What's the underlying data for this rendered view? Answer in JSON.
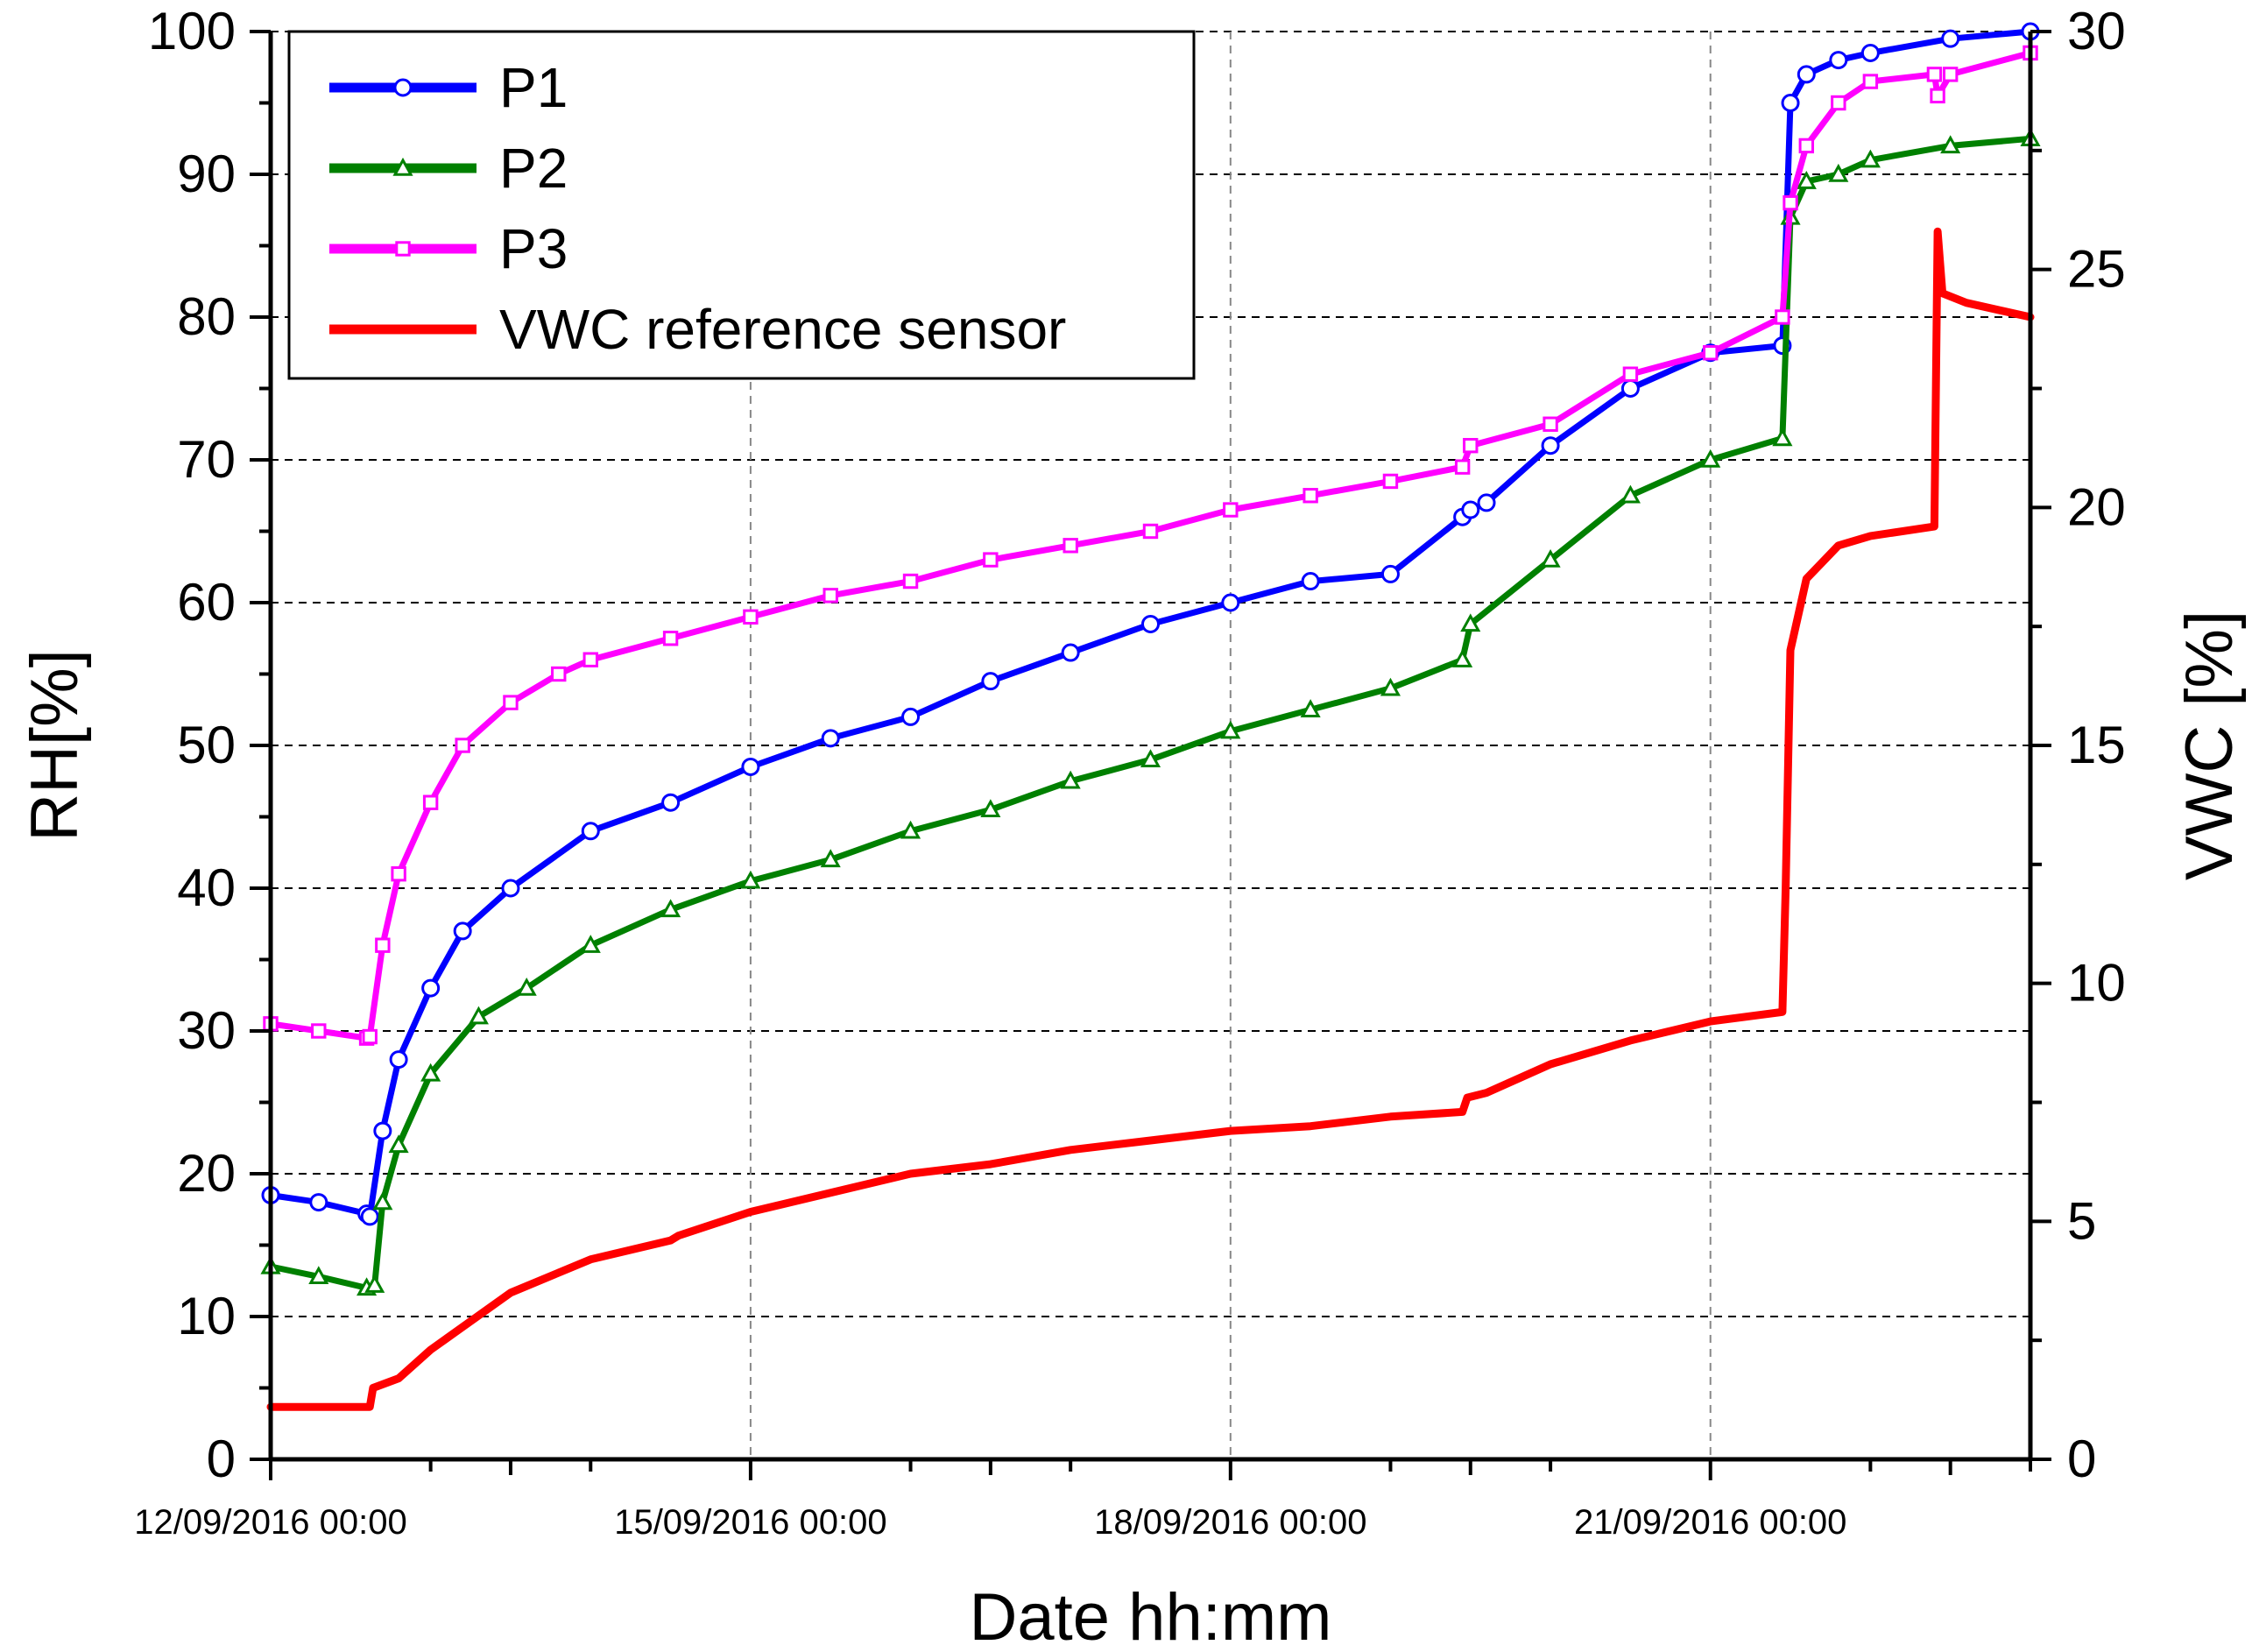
{
  "chart_data": {
    "type": "line",
    "title": "",
    "xlabel": "Date hh:mm",
    "ylabel_left": "RH[%]",
    "ylabel_right": "VWC [%]",
    "x_unit": "days since 12/09/2016 00:00",
    "xlim": [
      0,
      11
    ],
    "ylim_left": [
      0,
      100
    ],
    "ylim_right": [
      0,
      30
    ],
    "x_ticks": [
      0,
      3,
      6,
      9
    ],
    "x_tick_labels": [
      "12/09/2016 00:00",
      "15/09/2016 00:00",
      "18/09/2016 00:00",
      "21/09/2016 00:00"
    ],
    "y_ticks_left": [
      0,
      10,
      20,
      30,
      40,
      50,
      60,
      70,
      80,
      90,
      100
    ],
    "y_ticks_right": [
      0,
      5,
      10,
      15,
      20,
      25,
      30
    ],
    "grid": "dashed horizontal at left ticks, dashed vertical at date ticks",
    "legend_position": "top-left",
    "legend": [
      "P1",
      "P2",
      "P3",
      "VWC reference sensor"
    ],
    "series": [
      {
        "name": "P1",
        "axis": "left",
        "color": "#0000ff",
        "marker": "circle",
        "x": [
          0,
          0.3,
          0.6,
          0.62,
          0.7,
          0.8,
          1.0,
          1.2,
          1.5,
          2.0,
          2.5,
          3.0,
          3.5,
          4.0,
          4.5,
          5.0,
          5.5,
          6.0,
          6.5,
          7.0,
          7.45,
          7.5,
          7.6,
          8.0,
          8.5,
          9.0,
          9.45,
          9.5,
          9.6,
          9.8,
          10.0,
          10.5,
          11.0
        ],
        "y": [
          18.5,
          18.0,
          17.2,
          17.0,
          23.0,
          28.0,
          33.0,
          37.0,
          40.0,
          44.0,
          46.0,
          48.5,
          50.5,
          52.0,
          54.5,
          56.5,
          58.5,
          60.0,
          61.5,
          62.0,
          66.0,
          66.5,
          67.0,
          71.0,
          75.0,
          77.5,
          78.0,
          95.0,
          97.0,
          98.0,
          98.5,
          99.5,
          100.0
        ]
      },
      {
        "name": "P2",
        "axis": "left",
        "color": "#008000",
        "marker": "triangle",
        "x": [
          0,
          0.3,
          0.6,
          0.65,
          0.7,
          0.8,
          1.0,
          1.3,
          1.6,
          2.0,
          2.5,
          3.0,
          3.5,
          4.0,
          4.5,
          5.0,
          5.5,
          6.0,
          6.5,
          7.0,
          7.45,
          7.5,
          8.0,
          8.5,
          9.0,
          9.45,
          9.5,
          9.6,
          9.8,
          10.0,
          10.5,
          11.0
        ],
        "y": [
          13.5,
          12.8,
          12.0,
          12.2,
          18.0,
          22.0,
          27.0,
          31.0,
          33.0,
          36.0,
          38.5,
          40.5,
          42.0,
          44.0,
          45.5,
          47.5,
          49.0,
          51.0,
          52.5,
          54.0,
          56.0,
          58.5,
          63.0,
          67.5,
          70.0,
          71.5,
          87.0,
          89.5,
          90.0,
          91.0,
          92.0,
          92.5
        ]
      },
      {
        "name": "P3",
        "axis": "left",
        "color": "#ff00ff",
        "marker": "square",
        "x": [
          0,
          0.3,
          0.6,
          0.62,
          0.7,
          0.8,
          1.0,
          1.2,
          1.5,
          1.8,
          2.0,
          2.5,
          3.0,
          3.5,
          4.0,
          4.5,
          5.0,
          5.5,
          6.0,
          6.5,
          7.0,
          7.45,
          7.5,
          8.0,
          8.5,
          9.0,
          9.45,
          9.5,
          9.6,
          9.8,
          10.0,
          10.4,
          10.42,
          10.5,
          11.0
        ],
        "y": [
          30.5,
          30.0,
          29.5,
          29.6,
          36.0,
          41.0,
          46.0,
          50.0,
          53.0,
          55.0,
          56.0,
          57.5,
          59.0,
          60.5,
          61.5,
          63.0,
          64.0,
          65.0,
          66.5,
          67.5,
          68.5,
          69.5,
          71.0,
          72.5,
          76.0,
          77.5,
          80.0,
          88.0,
          92.0,
          95.0,
          96.5,
          97.0,
          95.5,
          97.0,
          98.5
        ]
      },
      {
        "name": "VWC reference sensor",
        "axis": "right",
        "color": "#ff0000",
        "marker": "none",
        "x": [
          0,
          0.62,
          0.64,
          0.8,
          1.0,
          1.5,
          2.0,
          2.5,
          2.55,
          3.0,
          3.5,
          4.0,
          4.5,
          5.0,
          5.5,
          6.0,
          6.5,
          7.0,
          7.45,
          7.48,
          7.6,
          8.0,
          8.5,
          9.0,
          9.45,
          9.47,
          9.5,
          9.6,
          9.8,
          10.0,
          10.4,
          10.42,
          10.45,
          10.6,
          11.0
        ],
        "y": [
          1.1,
          1.1,
          1.5,
          1.7,
          2.3,
          3.5,
          4.2,
          4.6,
          4.7,
          5.2,
          5.6,
          6.0,
          6.2,
          6.5,
          6.7,
          6.9,
          7.0,
          7.2,
          7.3,
          7.6,
          7.7,
          8.3,
          8.8,
          9.2,
          9.4,
          12.0,
          17.0,
          18.5,
          19.2,
          19.4,
          19.6,
          25.8,
          24.5,
          24.3,
          24.0
        ]
      }
    ]
  }
}
